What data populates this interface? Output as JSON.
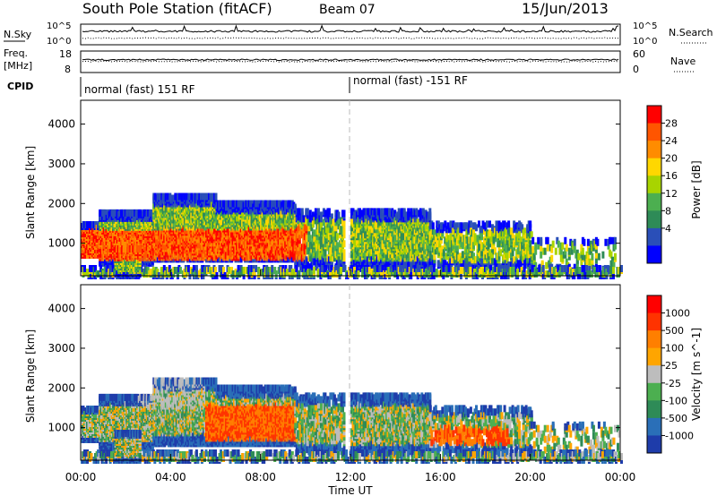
{
  "header": {
    "station": "South Pole Station (fitACF)",
    "beam": "Beam 07",
    "date": "15/Jun/2013"
  },
  "top_strip": {
    "left_label": "N.Sky",
    "right_label": "N.Search",
    "left_ticks": [
      "10^5",
      "10^0"
    ],
    "right_ticks": [
      "10^5",
      "10^0"
    ]
  },
  "freq_strip": {
    "left_label_line1": "Freq.",
    "left_label_line2": "[MHz]",
    "left_ticks": [
      "18",
      "8"
    ],
    "right_label": "Nave",
    "right_ticks": [
      "60",
      "0"
    ]
  },
  "cpid": {
    "label": "CPID",
    "segments": [
      "normal (fast) 151 RF",
      "normal (fast) -151 RF"
    ]
  },
  "chart_data": [
    {
      "type": "heatmap",
      "ylabel": "Slant Range [km]",
      "ylim": [
        180,
        4600
      ],
      "yticks": [
        1000,
        2000,
        3000,
        4000
      ],
      "xlim": [
        0,
        24
      ],
      "colorbar": {
        "label": "Power [dB]",
        "ticks": [
          "4",
          "8",
          "12",
          "16",
          "20",
          "24",
          "28"
        ]
      }
    },
    {
      "type": "heatmap",
      "ylabel": "Slant Range [km]",
      "ylim": [
        180,
        4600
      ],
      "yticks": [
        1000,
        2000,
        3000,
        4000
      ],
      "xlim": [
        0,
        24
      ],
      "xticks": [
        "00:00",
        "04:00",
        "08:00",
        "12:00",
        "16:00",
        "20:00",
        "00:00"
      ],
      "xlabel": "Time UT",
      "colorbar": {
        "label": "Velocity [m s^-1]",
        "ticks": [
          "1000",
          "500",
          "100",
          "25",
          "-25",
          "-100",
          "-500",
          "-1000"
        ]
      }
    }
  ],
  "colors": {
    "power_scale": [
      "#0000ff",
      "#2a4fb8",
      "#2e8b57",
      "#4caf50",
      "#a8d400",
      "#ffd700",
      "#ff8c00",
      "#ff5500",
      "#ff0000"
    ],
    "velocity_scale": [
      "#1e3caa",
      "#2a6fb8",
      "#2e8b57",
      "#4caf50",
      "#bdbdbd",
      "#ffa500",
      "#ff7f00",
      "#ff3300",
      "#ff0000"
    ]
  }
}
